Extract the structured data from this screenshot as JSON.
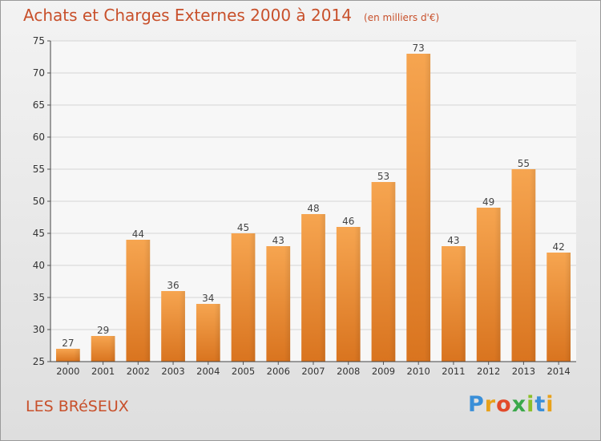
{
  "header": {
    "title": "Achats et Charges Externes 2000 à 2014",
    "subtitle": "(en milliers d'€)"
  },
  "footer": {
    "town": "LES BRéSEUX",
    "logo_letters": [
      "P",
      "r",
      "o",
      "x",
      "i",
      "t",
      "i"
    ]
  },
  "colors": {
    "title": "#c8502b",
    "bar_light": "#f6a550",
    "bar_dark": "#d9741f"
  },
  "chart_data": {
    "type": "bar",
    "title": "Achats et Charges Externes 2000 à 2014",
    "subtitle": "(en milliers d'€)",
    "categories": [
      "2000",
      "2001",
      "2002",
      "2003",
      "2004",
      "2005",
      "2006",
      "2007",
      "2008",
      "2009",
      "2010",
      "2011",
      "2012",
      "2013",
      "2014"
    ],
    "values": [
      27,
      29,
      44,
      36,
      34,
      45,
      43,
      48,
      46,
      53,
      73,
      43,
      49,
      55,
      42
    ],
    "ylim": [
      25,
      75
    ],
    "yticks": [
      25,
      30,
      35,
      40,
      45,
      50,
      55,
      60,
      65,
      70,
      75
    ],
    "grid": true
  }
}
